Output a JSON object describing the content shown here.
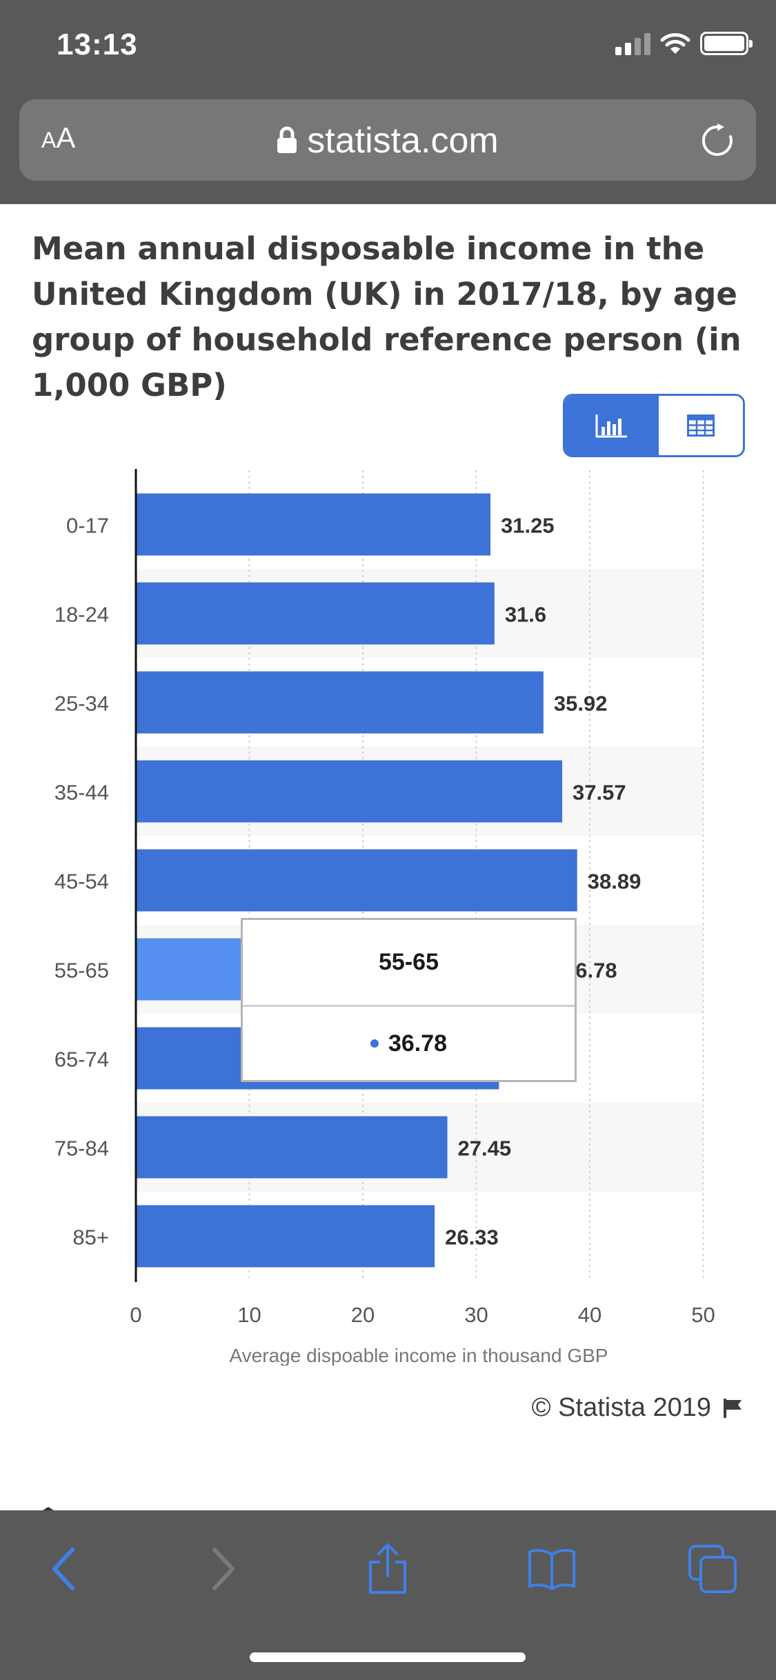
{
  "status_bar": {
    "time": "13:13",
    "icons": [
      "signal-icon",
      "wifi-icon",
      "battery-icon"
    ]
  },
  "browser": {
    "text_size_button": {
      "small": "A",
      "large": "A"
    },
    "url": "statista.com",
    "icons": [
      "lock-icon",
      "reload-icon"
    ]
  },
  "page": {
    "title": "Mean annual disposable income in the United Kingdom (UK) in 2017/18, by age group of household reference person (in 1,000 GBP)",
    "view_toggle": {
      "selected": "chart",
      "icons": [
        "bar-chart-icon",
        "table-icon"
      ]
    },
    "copyright": "© Statista 2019",
    "copyright_icon": "flag-icon"
  },
  "tooltip": {
    "category": "55-65",
    "value": "36.78"
  },
  "chart_data": {
    "type": "bar",
    "orientation": "horizontal",
    "categories": [
      "0-17",
      "18-24",
      "25-34",
      "35-44",
      "45-54",
      "55-65",
      "65-74",
      "75-84",
      "85+"
    ],
    "values": [
      31.25,
      31.6,
      35.92,
      37.57,
      38.89,
      36.78,
      32.0,
      27.45,
      26.33
    ],
    "data_labels": [
      "31.25",
      "31.6",
      "35.92",
      "37.57",
      "38.89",
      "36.78",
      "",
      "27.45",
      "26.33"
    ],
    "highlighted_index": 5,
    "x_ticks": [
      "0",
      "10",
      "20",
      "30",
      "40",
      "50"
    ],
    "xlim": [
      0,
      50
    ],
    "xlabel": "Average dispoable income in thousand GBP",
    "grid": "vertical-dotted",
    "colors": {
      "bar": "#3d72d6",
      "bar_highlight": "#5590f0",
      "band": "#f7f7f7",
      "label": "#333333",
      "tick": "#555555"
    }
  },
  "toolbar": {
    "icons": [
      "back-icon",
      "forward-icon",
      "share-icon",
      "bookmarks-icon",
      "tabs-icon"
    ]
  }
}
